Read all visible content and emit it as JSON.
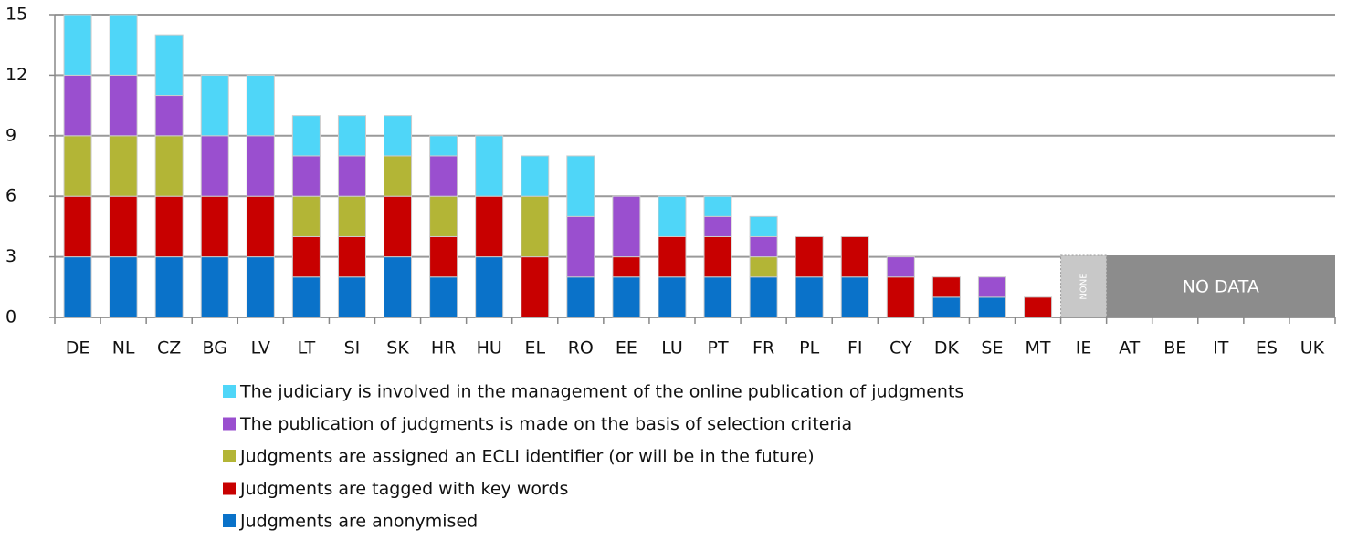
{
  "chart_data": {
    "type": "stacked_bar",
    "categories": [
      "DE",
      "NL",
      "CZ",
      "BG",
      "LV",
      "LT",
      "SI",
      "SK",
      "HR",
      "HU",
      "EL",
      "RO",
      "EE",
      "LU",
      "PT",
      "FR",
      "PL",
      "FI",
      "CY",
      "DK",
      "SE",
      "MT",
      "IE",
      "AT",
      "BE",
      "IT",
      "ES",
      "UK"
    ],
    "series": [
      {
        "name": "Judgments are anonymised",
        "color": "#0a72c9",
        "values": [
          3,
          3,
          3,
          3,
          3,
          2,
          2,
          3,
          2,
          3,
          0,
          2,
          2,
          2,
          2,
          2,
          2,
          2,
          0,
          1,
          1,
          0,
          null,
          null,
          null,
          null,
          null,
          null
        ]
      },
      {
        "name": "Judgments are tagged with key words",
        "color": "#c80000",
        "values": [
          3,
          3,
          3,
          3,
          3,
          2,
          2,
          3,
          2,
          3,
          3,
          0,
          1,
          2,
          2,
          0,
          2,
          2,
          2,
          1,
          0,
          1,
          null,
          null,
          null,
          null,
          null,
          null
        ]
      },
      {
        "name": "Judgments are assigned an ECLI identifier (or will be in the future)",
        "color": "#b3b536",
        "values": [
          3,
          3,
          3,
          0,
          0,
          2,
          2,
          2,
          2,
          0,
          3,
          0,
          0,
          0,
          0,
          1,
          0,
          0,
          0,
          0,
          0,
          0,
          null,
          null,
          null,
          null,
          null,
          null
        ]
      },
      {
        "name": "The publication of judgments is made on the basis of selection criteria",
        "color": "#9a4fcf",
        "values": [
          3,
          3,
          2,
          3,
          3,
          2,
          2,
          0,
          2,
          0,
          0,
          3,
          3,
          0,
          1,
          1,
          0,
          0,
          1,
          0,
          1,
          0,
          null,
          null,
          null,
          null,
          null,
          null
        ]
      },
      {
        "name": "The judiciary is involved in the management of the online publication of judgments",
        "color": "#4fd6f8",
        "values": [
          3,
          3,
          3,
          3,
          3,
          2,
          2,
          2,
          1,
          3,
          2,
          3,
          0,
          2,
          1,
          1,
          0,
          0,
          0,
          0,
          0,
          0,
          null,
          null,
          null,
          null,
          null,
          null
        ]
      }
    ],
    "ylim": [
      0,
      15
    ],
    "yticks": [
      0,
      3,
      6,
      9,
      12,
      15
    ],
    "grid": true,
    "annotations": [
      {
        "text": "NONE"
      },
      {
        "text": "NO DATA"
      }
    ]
  }
}
